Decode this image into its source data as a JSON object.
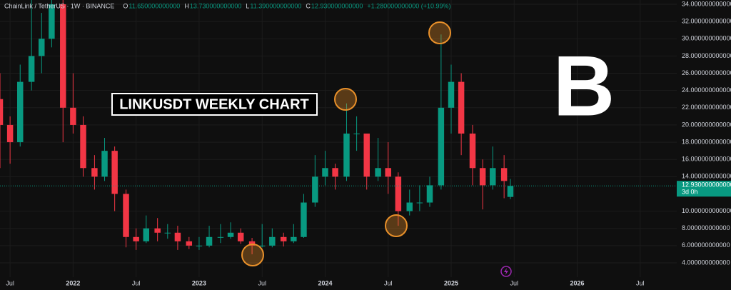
{
  "chart_data": {
    "type": "candlestick",
    "header": {
      "symbol": "ChainLink / TetherUS · 1W · BINANCE",
      "ohlc": [
        {
          "key": "O",
          "value": "11.650000000000"
        },
        {
          "key": "H",
          "value": "13.730000000000"
        },
        {
          "key": "L",
          "value": "11.390000000000"
        },
        {
          "key": "C",
          "value": "12.930000000000"
        }
      ],
      "change": "+1.280000000000 (+10.99%)"
    },
    "annotation": "LINKUSDT WEEKLY CHART",
    "logo": "B",
    "up_color": "#089981",
    "down_color": "#f23645",
    "x": [
      2021.42,
      2021.5,
      2021.58,
      2021.67,
      2021.75,
      2021.83,
      2021.92,
      2022.0,
      2022.08,
      2022.17,
      2022.25,
      2022.33,
      2022.42,
      2022.5,
      2022.58,
      2022.67,
      2022.75,
      2022.83,
      2022.92,
      2023.0,
      2023.08,
      2023.17,
      2023.25,
      2023.33,
      2023.42,
      2023.5,
      2023.58,
      2023.67,
      2023.75,
      2023.83,
      2023.92,
      2024.0,
      2024.08,
      2024.17,
      2024.25,
      2024.33,
      2024.42,
      2024.5,
      2024.58,
      2024.67,
      2024.75,
      2024.83,
      2024.92,
      2025.0,
      2025.08,
      2025.17,
      2025.25,
      2025.33,
      2025.42,
      2025.47
    ],
    "open": [
      23,
      20,
      18,
      25,
      28,
      30,
      34,
      22,
      20,
      15,
      14,
      17,
      12,
      7,
      6.5,
      8,
      7.5,
      7.5,
      6.5,
      6,
      6,
      7,
      7,
      7.5,
      6.5,
      6,
      6,
      7,
      6.5,
      7,
      11,
      14,
      15,
      14,
      19,
      19,
      14,
      15,
      14,
      10,
      11,
      11,
      13,
      22,
      25,
      19,
      15,
      13,
      15,
      11.65
    ],
    "high": [
      26,
      21,
      27,
      36,
      33,
      38,
      35,
      26,
      21,
      16.5,
      18.5,
      17.5,
      12.5,
      8,
      9.5,
      9.2,
      8.5,
      8.3,
      7,
      7,
      8.3,
      8.5,
      8.7,
      8,
      6.9,
      8.5,
      8,
      7.5,
      8.5,
      12,
      16.5,
      17,
      15.5,
      22.5,
      21,
      19,
      18.5,
      18,
      14.5,
      12.5,
      13,
      14,
      30.5,
      27,
      26,
      20,
      16,
      17.5,
      16.5,
      13.73
    ],
    "low": [
      15,
      15.5,
      17.5,
      24,
      26,
      29,
      18,
      19,
      14,
      12.5,
      13.5,
      10,
      5.8,
      5.5,
      6.3,
      6.5,
      6.8,
      5.5,
      5.6,
      5.5,
      5.8,
      6.3,
      6.8,
      6.2,
      5,
      5.8,
      5.8,
      5.9,
      6.3,
      6.9,
      10.5,
      13,
      12.5,
      13.5,
      17,
      12.5,
      13.5,
      12,
      8.3,
      9.5,
      10,
      10.5,
      12.5,
      19,
      16.5,
      13,
      10.2,
      12.5,
      11.5,
      11.39
    ],
    "close": [
      20,
      18,
      25,
      28,
      30,
      34,
      22,
      20,
      15,
      14,
      17,
      12,
      7,
      6.5,
      8,
      7.5,
      7.5,
      6.5,
      6,
      6,
      7,
      7,
      7.5,
      6.5,
      6,
      6,
      7,
      6.5,
      7,
      11,
      14,
      15,
      14,
      19,
      19,
      14,
      15,
      14,
      10,
      11,
      11,
      13,
      22,
      25,
      19,
      15,
      13,
      15,
      13.5,
      12.93
    ],
    "xlim": [
      2021.42,
      2026.79
    ],
    "xticks": [
      {
        "value": 2021.5,
        "label": "Jul"
      },
      2022,
      {
        "value": 2022.5,
        "label": "Jul"
      },
      2023,
      {
        "value": 2023.5,
        "label": "Jul"
      },
      2024,
      {
        "value": 2024.5,
        "label": "Jul"
      },
      2025,
      {
        "value": 2025.5,
        "label": "Jul"
      },
      2026,
      {
        "value": 2026.5,
        "label": "Jul"
      }
    ],
    "ylim": [
      4,
      34
    ],
    "yticks": [
      {
        "value": 4,
        "label": "4.000000000000"
      },
      {
        "value": 6,
        "label": "6.000000000000"
      },
      {
        "value": 8,
        "label": "8.000000000000"
      },
      {
        "value": 10,
        "label": "10.000000000000"
      },
      {
        "value": 14,
        "label": "14.000000000000"
      },
      {
        "value": 16,
        "label": "16.000000000000"
      },
      {
        "value": 18,
        "label": "18.000000000000"
      },
      {
        "value": 20,
        "label": "20.000000000000"
      },
      {
        "value": 22,
        "label": "22.000000000000"
      },
      {
        "value": 24,
        "label": "24.000000000000"
      },
      {
        "value": 26,
        "label": "26.000000000000"
      },
      {
        "value": 28,
        "label": "28.000000000000"
      },
      {
        "value": 30,
        "label": "30.000000000000"
      },
      {
        "value": 32,
        "label": "32.000000000000"
      },
      {
        "value": 34,
        "label": "34.000000000000"
      }
    ],
    "last_price": {
      "value": 12.93,
      "label": "12.930000000000"
    },
    "countdown": "3d 0h"
  }
}
